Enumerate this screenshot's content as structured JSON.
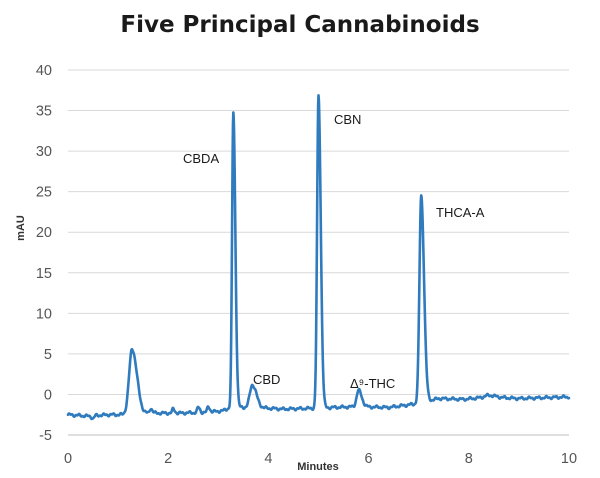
{
  "chart_data": {
    "type": "line",
    "title": "Five Principal Cannabinoids",
    "xlabel": "Minutes",
    "ylabel": "mAU",
    "xlim": [
      0,
      10
    ],
    "ylim": [
      -5,
      40
    ],
    "x_ticks": [
      0,
      2,
      4,
      6,
      8,
      10
    ],
    "y_ticks": [
      -5,
      0,
      5,
      10,
      15,
      20,
      25,
      30,
      35,
      40
    ],
    "grid": "horizontal",
    "line_color": "#2f7bbd",
    "baseline_points": [
      [
        0,
        -2.5
      ],
      [
        0.25,
        -2.6
      ],
      [
        0.45,
        -2.7
      ],
      [
        0.5,
        -3.0
      ],
      [
        0.55,
        -2.6
      ],
      [
        0.8,
        -2.5
      ],
      [
        1.1,
        -2.5
      ],
      [
        1.7,
        -2.3
      ],
      [
        2.2,
        -2.3
      ],
      [
        2.8,
        -2.2
      ],
      [
        3.1,
        -2.0
      ],
      [
        3.24,
        -1.6
      ],
      [
        3.7,
        -1.6
      ],
      [
        4.3,
        -1.8
      ],
      [
        4.9,
        -1.7
      ],
      [
        5.3,
        -1.6
      ],
      [
        5.8,
        -1.5
      ],
      [
        6.4,
        -1.6
      ],
      [
        6.9,
        -1.2
      ],
      [
        7.4,
        -0.5
      ],
      [
        7.9,
        -0.6
      ],
      [
        8.4,
        -0.3
      ],
      [
        9.0,
        -0.5
      ],
      [
        9.5,
        -0.4
      ],
      [
        10.0,
        -0.3
      ]
    ],
    "peaks": [
      {
        "x": 1.28,
        "height": 5.6,
        "width": 0.06,
        "label": ""
      },
      {
        "x": 1.65,
        "height": -1.7,
        "width": 0.02,
        "label": ""
      },
      {
        "x": 2.1,
        "height": -1.8,
        "width": 0.02,
        "label": ""
      },
      {
        "x": 2.6,
        "height": -1.6,
        "width": 0.02,
        "label": ""
      },
      {
        "x": 2.8,
        "height": -1.5,
        "width": 0.02,
        "label": ""
      },
      {
        "x": 3.3,
        "height": 34.8,
        "width": 0.025,
        "label": "CBDA"
      },
      {
        "x": 3.68,
        "height": 1.2,
        "width": 0.05,
        "label": "CBD"
      },
      {
        "x": 5.0,
        "height": 36.8,
        "width": 0.028,
        "label": "CBN"
      },
      {
        "x": 5.8,
        "height": 0.5,
        "width": 0.04,
        "label": "Δ⁹-THC"
      },
      {
        "x": 7.05,
        "height": 24.5,
        "width": 0.035,
        "label": "THCA-A"
      },
      {
        "x": 8.4,
        "height": -0.1,
        "width": 0.08,
        "label": ""
      }
    ],
    "annotations": [
      "CBDA",
      "CBD",
      "CBN",
      "Δ⁹-THC",
      "THCA-A"
    ]
  }
}
